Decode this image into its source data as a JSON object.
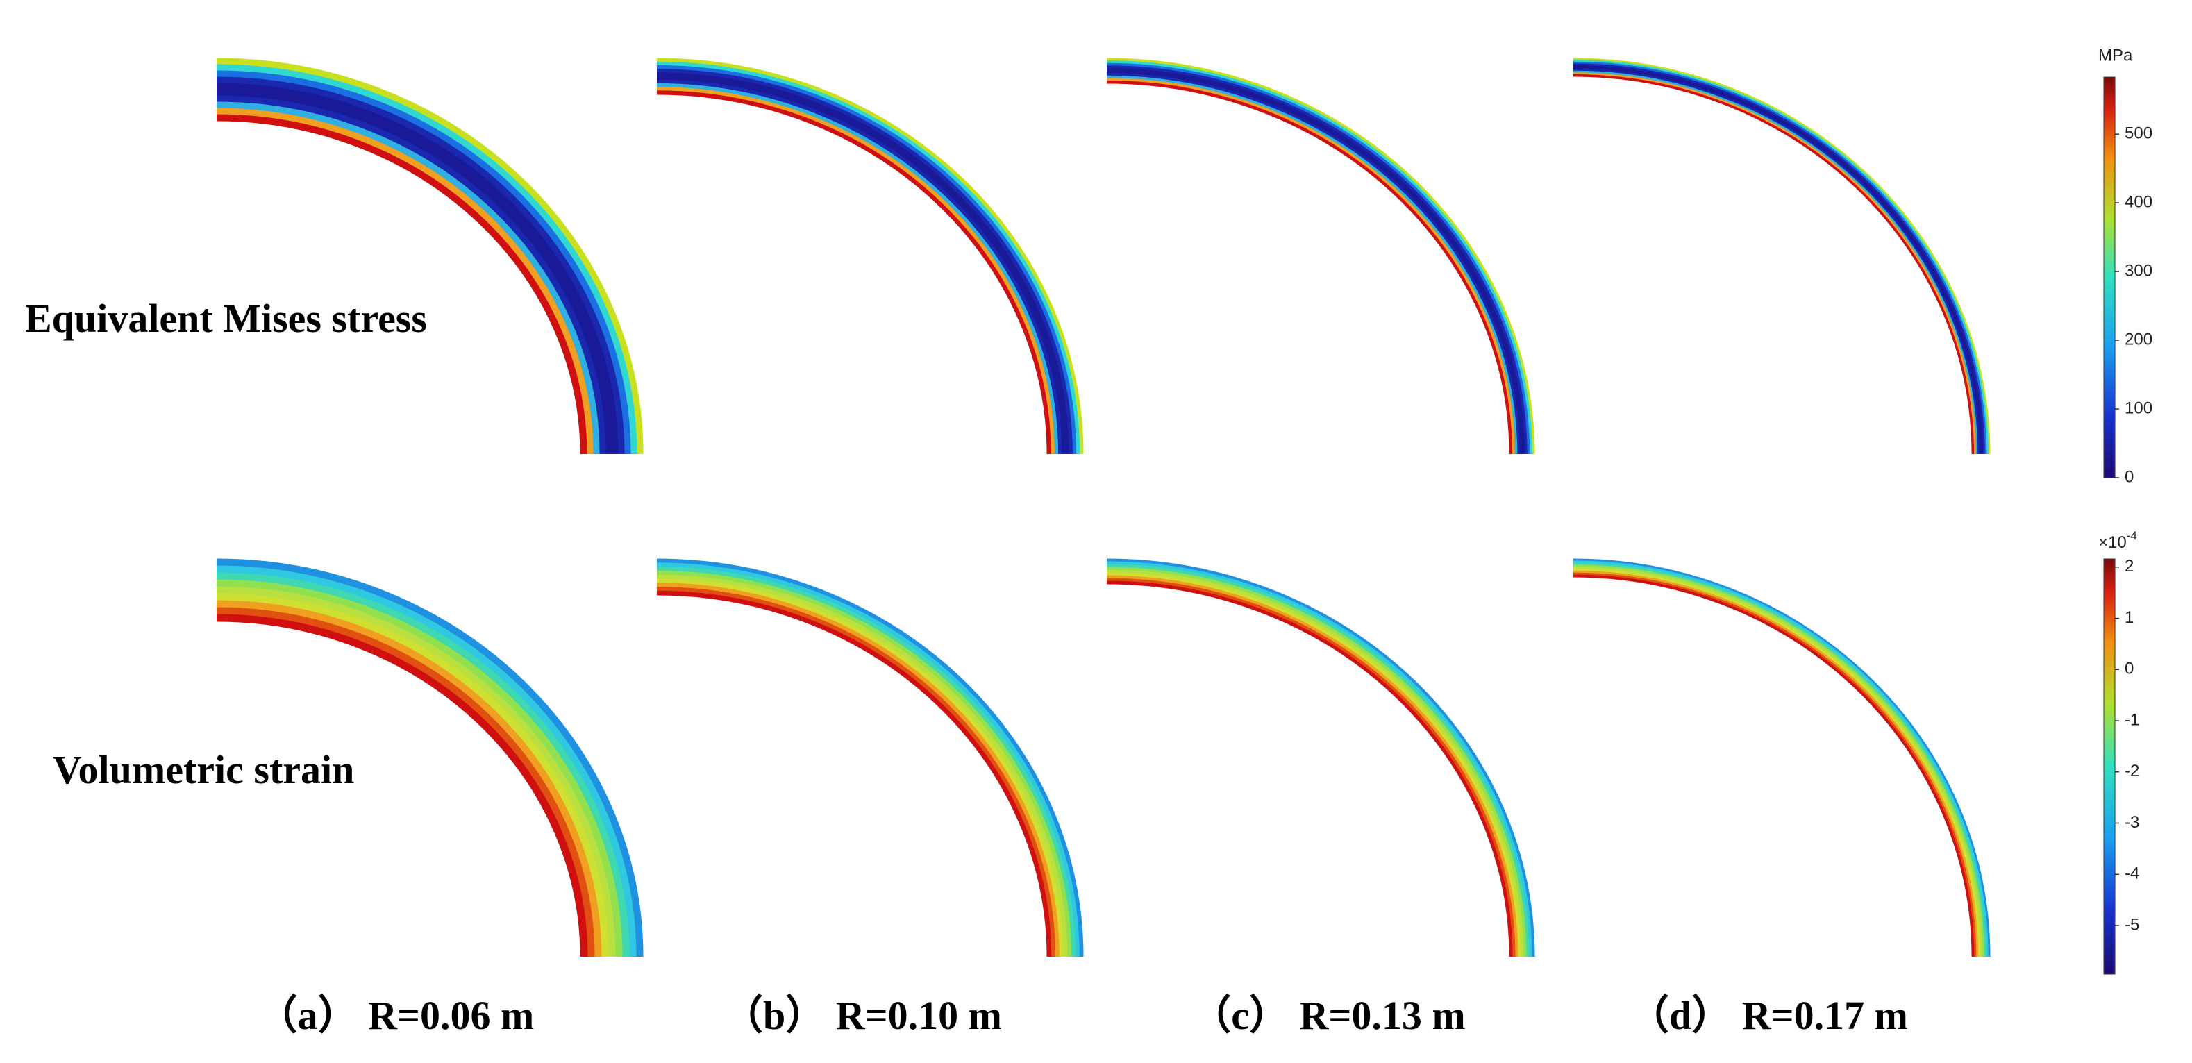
{
  "rows": [
    {
      "label": "Equivalent Mises stress"
    },
    {
      "label": "Volumetric strain"
    }
  ],
  "columns": [
    {
      "label": "（a） R=0.06 m"
    },
    {
      "label": "（b） R=0.10 m"
    },
    {
      "label": "（c） R=0.13 m"
    },
    {
      "label": "（d） R=0.17 m"
    }
  ],
  "colorbars": [
    {
      "unit": "MPa",
      "lim": [
        0,
        583
      ],
      "ticks": [
        0,
        100,
        200,
        300,
        400,
        500
      ]
    },
    {
      "unit_base": "×10",
      "unit_exponent": "-4",
      "lim": [
        -5.95,
        2.16
      ],
      "ticks": [
        2,
        1,
        0,
        -1,
        -2,
        -3,
        -4,
        -5
      ]
    }
  ]
}
